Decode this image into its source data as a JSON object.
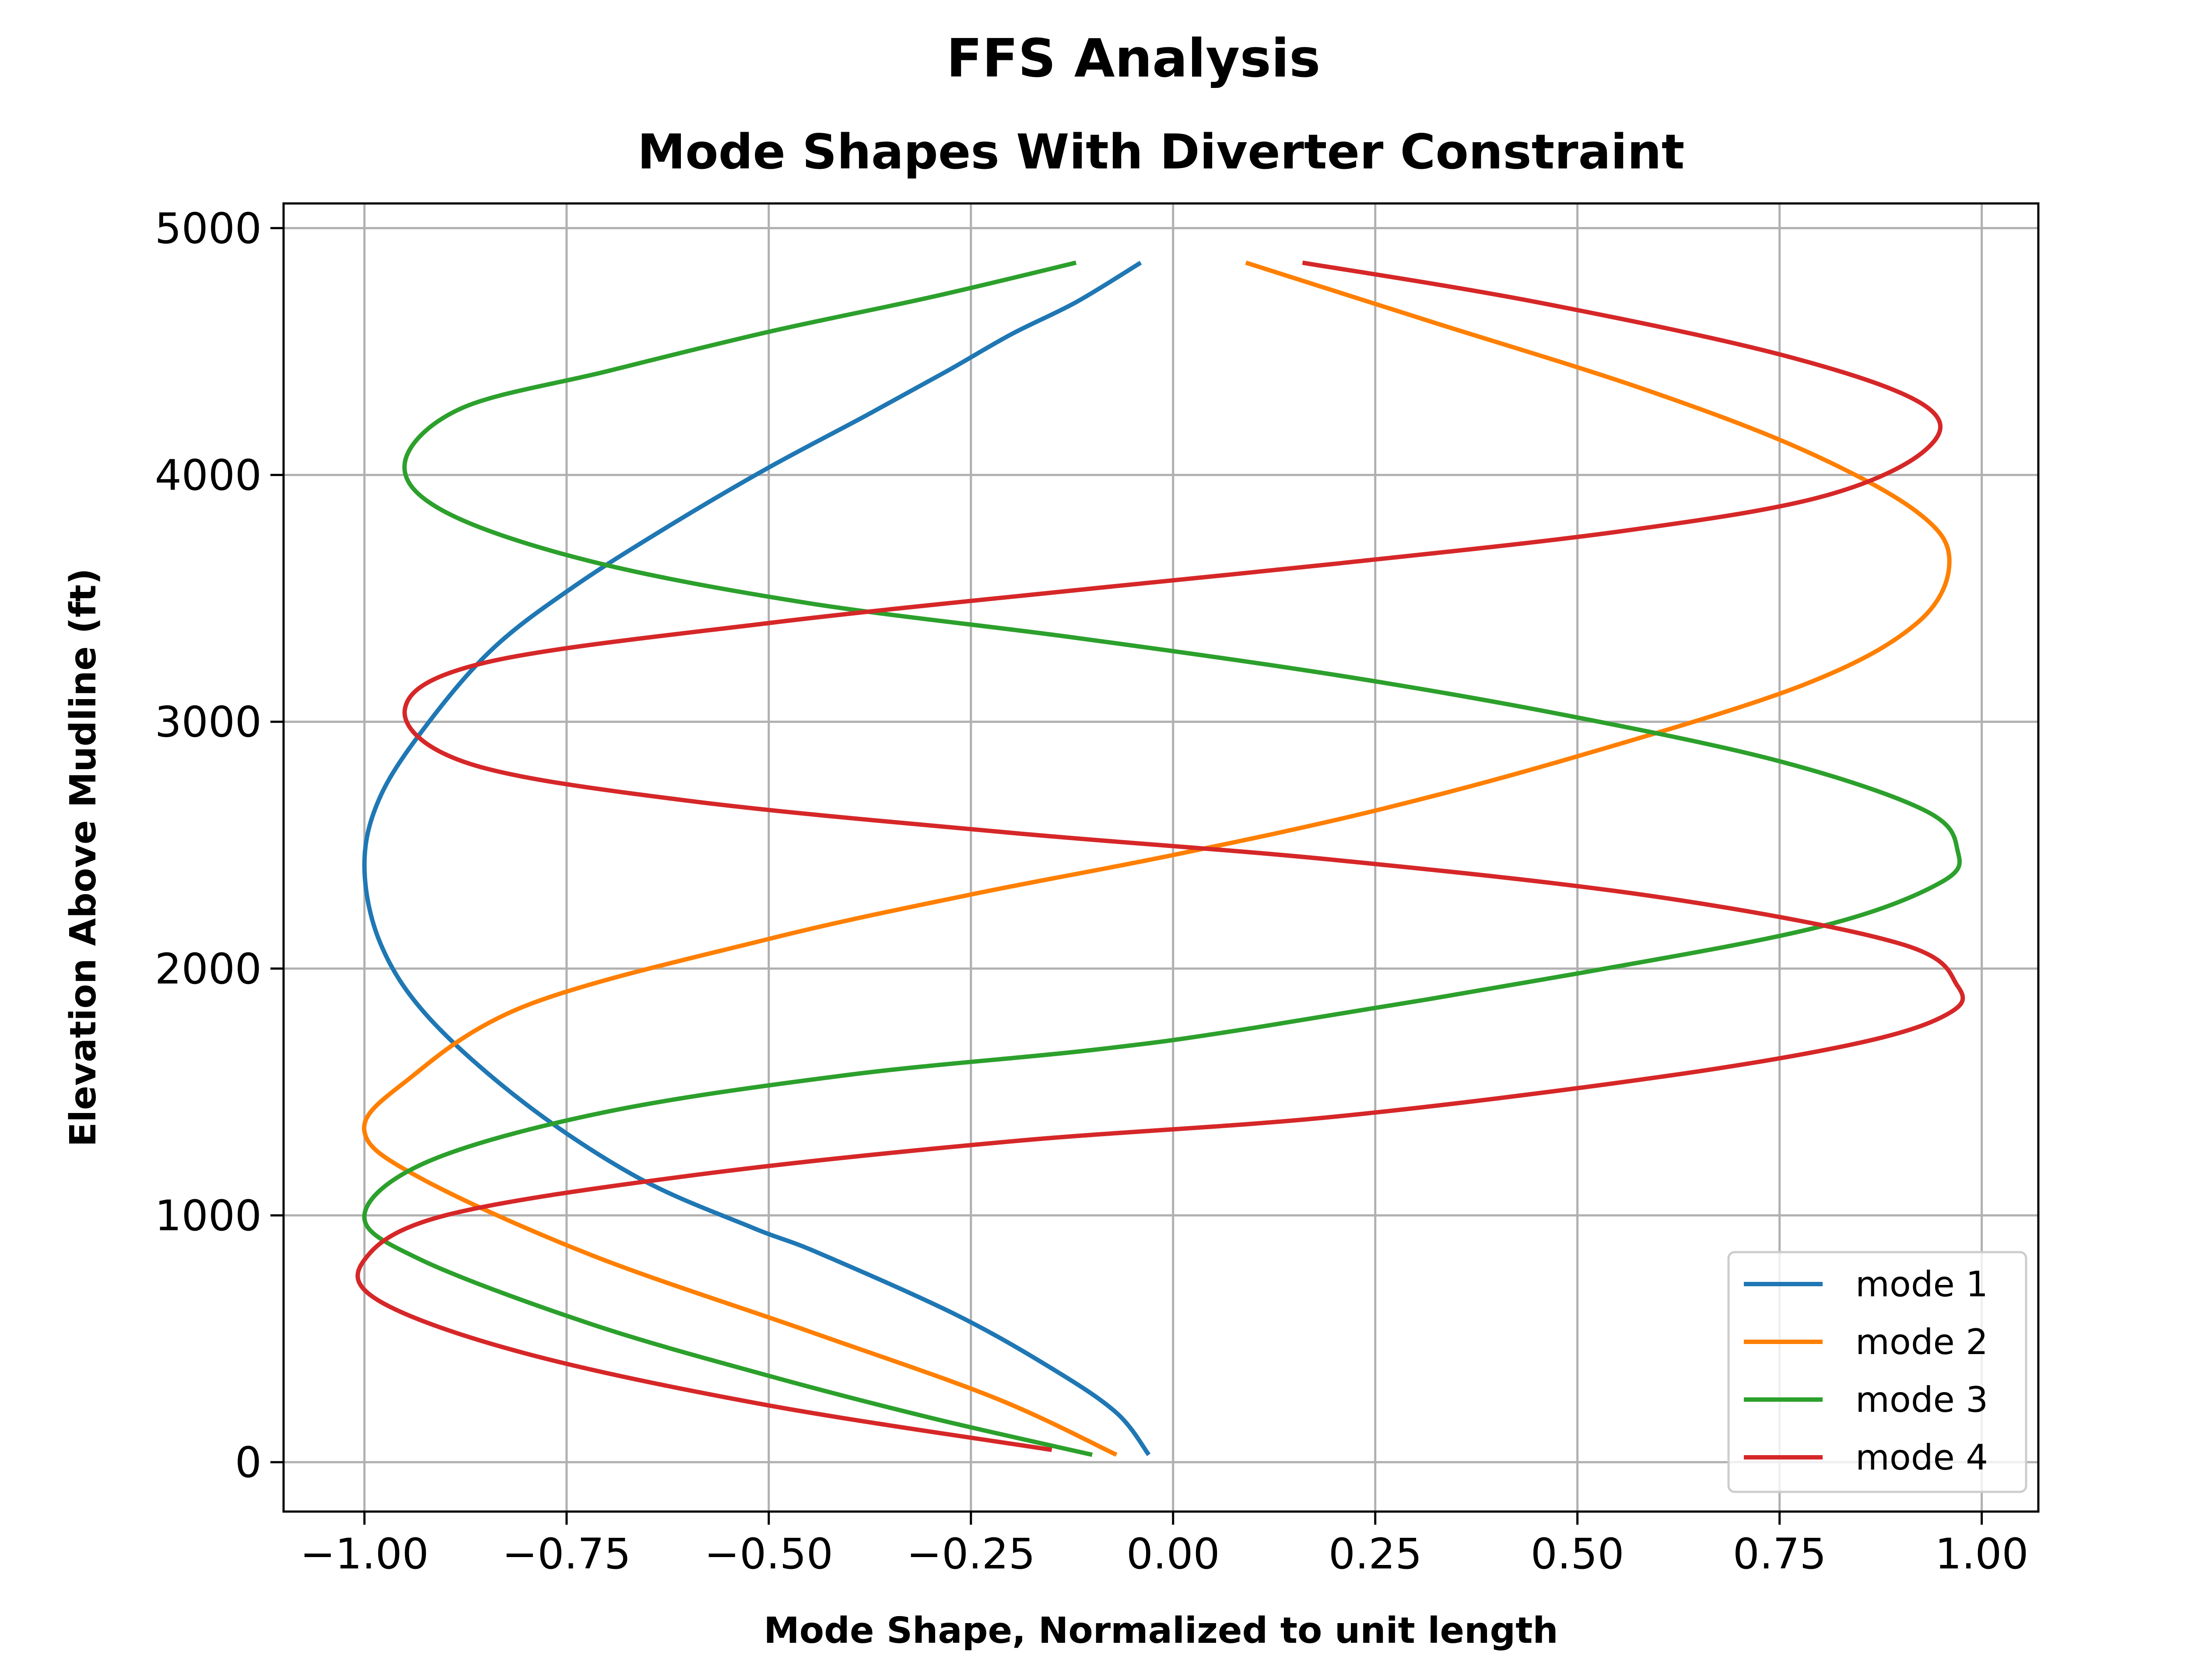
{
  "chart_data": {
    "type": "line",
    "suptitle": "FFS Analysis",
    "title": "Mode Shapes With Diverter Constraint",
    "xlabel": "Mode Shape, Normalized to unit length",
    "ylabel": "Elevation Above Mudline (ft)",
    "xlim": [
      -1.1,
      1.07
    ],
    "ylim": [
      -200,
      5100
    ],
    "xticks": [
      -1.0,
      -0.75,
      -0.5,
      -0.25,
      0.0,
      0.25,
      0.5,
      0.75,
      1.0
    ],
    "xtick_labels": [
      "−1.00",
      "−0.75",
      "−0.50",
      "−0.25",
      "0.00",
      "0.25",
      "0.50",
      "0.75",
      "1.00"
    ],
    "yticks": [
      0,
      1000,
      2000,
      3000,
      4000,
      5000
    ],
    "ytick_labels": [
      "0",
      "1000",
      "2000",
      "3000",
      "4000",
      "5000"
    ],
    "grid": true,
    "legend_position": "lower-right",
    "series": [
      {
        "name": "mode 1",
        "color": "#1f77b4",
        "points": [
          [
            -0.03,
            30
          ],
          [
            -0.07,
            200
          ],
          [
            -0.15,
            380
          ],
          [
            -0.27,
            600
          ],
          [
            -0.44,
            850
          ],
          [
            -0.52,
            950
          ],
          [
            -0.66,
            1150
          ],
          [
            -0.8,
            1450
          ],
          [
            -0.92,
            1800
          ],
          [
            -0.98,
            2100
          ],
          [
            -1.0,
            2420
          ],
          [
            -0.98,
            2700
          ],
          [
            -0.92,
            3000
          ],
          [
            -0.84,
            3300
          ],
          [
            -0.74,
            3550
          ],
          [
            -0.62,
            3800
          ],
          [
            -0.5,
            4030
          ],
          [
            -0.38,
            4240
          ],
          [
            -0.28,
            4420
          ],
          [
            -0.2,
            4570
          ],
          [
            -0.12,
            4700
          ],
          [
            -0.04,
            4860
          ]
        ]
      },
      {
        "name": "mode 2",
        "color": "#ff7f00",
        "points": [
          [
            -0.07,
            30
          ],
          [
            -0.22,
            260
          ],
          [
            -0.45,
            530
          ],
          [
            -0.72,
            840
          ],
          [
            -0.93,
            1150
          ],
          [
            -1.0,
            1340
          ],
          [
            -0.95,
            1540
          ],
          [
            -0.8,
            1850
          ],
          [
            -0.5,
            2120
          ],
          [
            -0.25,
            2300
          ],
          [
            0.0,
            2460
          ],
          [
            0.25,
            2640
          ],
          [
            0.5,
            2860
          ],
          [
            0.78,
            3150
          ],
          [
            0.92,
            3400
          ],
          [
            0.96,
            3650
          ],
          [
            0.92,
            3850
          ],
          [
            0.78,
            4100
          ],
          [
            0.58,
            4350
          ],
          [
            0.32,
            4620
          ],
          [
            0.09,
            4860
          ]
        ]
      },
      {
        "name": "mode 3",
        "color": "#2ca02c",
        "points": [
          [
            -0.1,
            30
          ],
          [
            -0.3,
            180
          ],
          [
            -0.5,
            350
          ],
          [
            -0.72,
            560
          ],
          [
            -0.93,
            820
          ],
          [
            -1.0,
            1000
          ],
          [
            -0.92,
            1220
          ],
          [
            -0.7,
            1420
          ],
          [
            -0.4,
            1570
          ],
          [
            -0.1,
            1670
          ],
          [
            0.1,
            1760
          ],
          [
            0.5,
            1980
          ],
          [
            0.8,
            2170
          ],
          [
            0.95,
            2350
          ],
          [
            0.97,
            2480
          ],
          [
            0.93,
            2640
          ],
          [
            0.75,
            2840
          ],
          [
            0.48,
            3030
          ],
          [
            0.2,
            3190
          ],
          [
            -0.12,
            3340
          ],
          [
            -0.45,
            3480
          ],
          [
            -0.72,
            3650
          ],
          [
            -0.9,
            3850
          ],
          [
            -0.95,
            4050
          ],
          [
            -0.88,
            4270
          ],
          [
            -0.7,
            4420
          ],
          [
            -0.5,
            4580
          ],
          [
            -0.3,
            4720
          ],
          [
            -0.12,
            4860
          ]
        ]
      },
      {
        "name": "mode 4",
        "color": "#d62728",
        "points": [
          [
            -0.15,
            50
          ],
          [
            -0.5,
            230
          ],
          [
            -0.8,
            440
          ],
          [
            -0.98,
            650
          ],
          [
            -1.0,
            820
          ],
          [
            -0.9,
            1000
          ],
          [
            -0.6,
            1160
          ],
          [
            -0.2,
            1300
          ],
          [
            0.2,
            1400
          ],
          [
            0.6,
            1560
          ],
          [
            0.85,
            1700
          ],
          [
            0.96,
            1820
          ],
          [
            0.97,
            1930
          ],
          [
            0.9,
            2100
          ],
          [
            0.6,
            2290
          ],
          [
            0.2,
            2440
          ],
          [
            -0.2,
            2550
          ],
          [
            -0.6,
            2680
          ],
          [
            -0.87,
            2830
          ],
          [
            -0.95,
            3050
          ],
          [
            -0.85,
            3240
          ],
          [
            -0.5,
            3400
          ],
          [
            -0.1,
            3540
          ],
          [
            0.2,
            3640
          ],
          [
            0.55,
            3770
          ],
          [
            0.8,
            3910
          ],
          [
            0.93,
            4100
          ],
          [
            0.93,
            4280
          ],
          [
            0.76,
            4480
          ],
          [
            0.45,
            4700
          ],
          [
            0.16,
            4860
          ]
        ]
      }
    ]
  }
}
